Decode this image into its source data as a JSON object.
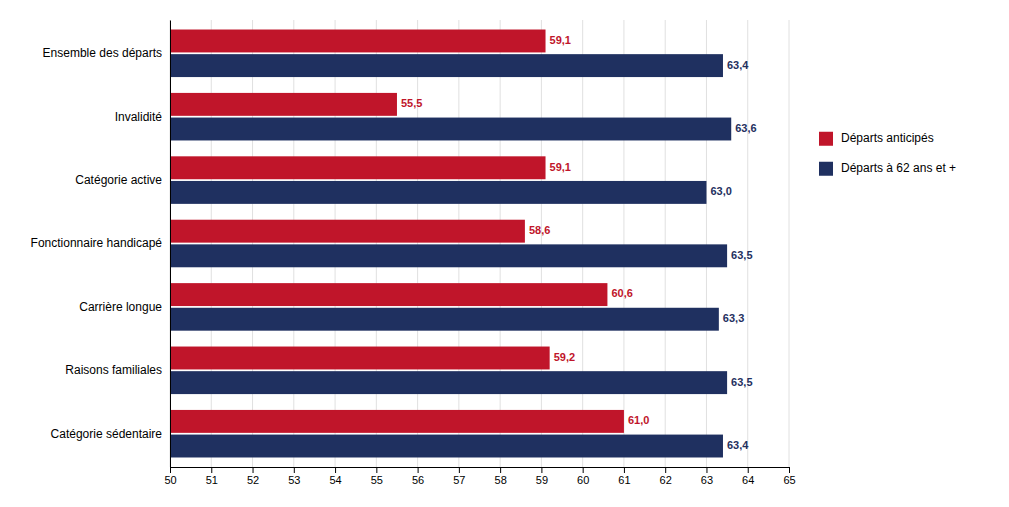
{
  "chart_data": {
    "type": "bar",
    "orientation": "horizontal",
    "categories": [
      "Catégorie sédentaire",
      "Raisons familiales",
      "Carrière longue",
      "Fonctionnaire handicapé",
      "Catégorie active",
      "Invalidité",
      "Ensemble des départs"
    ],
    "series": [
      {
        "name": "Départs anticipés",
        "color": "#c0152a",
        "values": [
          61.0,
          59.2,
          60.6,
          58.6,
          59.1,
          55.5,
          59.1
        ],
        "value_labels": [
          "61,0",
          "59,2",
          "60,6",
          "58,6",
          "59,1",
          "55,5",
          "59,1"
        ]
      },
      {
        "name": "Départs à 62 ans et +",
        "color": "#1f3060",
        "values": [
          63.4,
          63.5,
          63.3,
          63.5,
          63.0,
          63.6,
          63.4
        ],
        "value_labels": [
          "63,4",
          "63,5",
          "63,3",
          "63,5",
          "63,0",
          "63,6",
          "63,4"
        ]
      }
    ],
    "xlim": [
      50,
      65
    ],
    "xticks": [
      50,
      51,
      52,
      53,
      54,
      55,
      56,
      57,
      58,
      59,
      60,
      61,
      62,
      63,
      64,
      65
    ],
    "grid": true,
    "legend": "right",
    "data_labels": true
  }
}
